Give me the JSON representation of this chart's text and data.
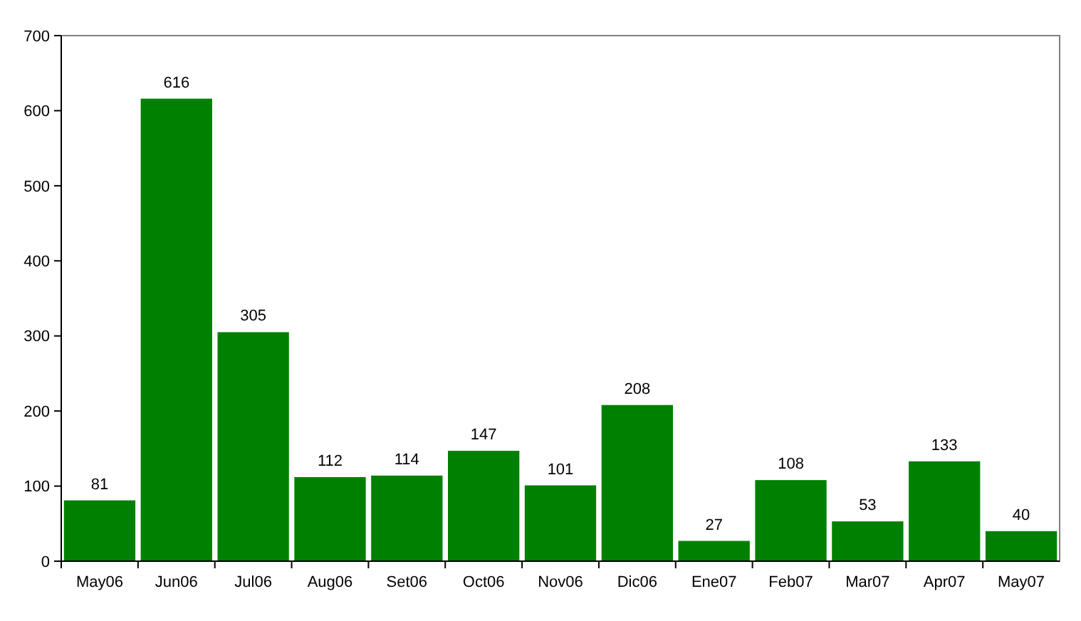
{
  "chart_data": {
    "type": "bar",
    "categories": [
      "May06",
      "Jun06",
      "Jul06",
      "Aug06",
      "Set06",
      "Oct06",
      "Nov06",
      "Dic06",
      "Ene07",
      "Feb07",
      "Mar07",
      "Apr07",
      "May07"
    ],
    "values": [
      81,
      616,
      305,
      112,
      114,
      147,
      101,
      208,
      27,
      108,
      53,
      133,
      40
    ],
    "color": "#008000",
    "ylim": [
      0,
      700
    ],
    "yticks": [
      0,
      100,
      200,
      300,
      400,
      500,
      600,
      700
    ],
    "data_labels": true
  }
}
